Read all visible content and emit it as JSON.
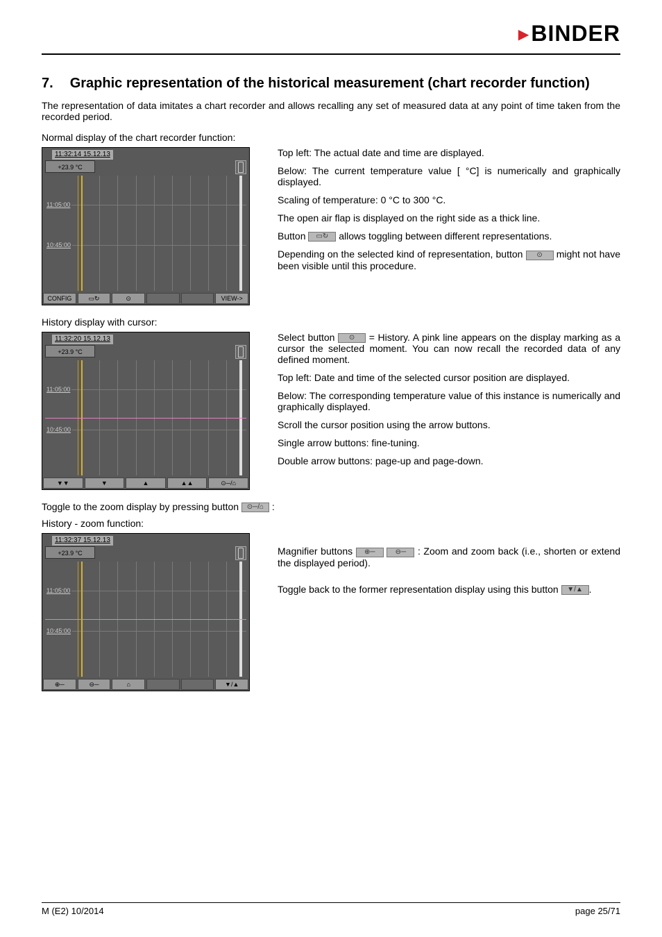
{
  "header": {
    "brand": "BINDER"
  },
  "section": {
    "number": "7.",
    "title": "Graphic representation of the historical measurement (chart recorder function)"
  },
  "intro": "The representation of data imitates a chart recorder and allows recalling any set of measured data at any point of time taken from the recorded period.",
  "caption1": "Normal display of the chart recorder function:",
  "caption2": "History display with cursor:",
  "toggle_caption": "Toggle to the zoom display by pressing button",
  "toggle_suffix": ":",
  "caption3": "History - zoom function:",
  "right1": {
    "p1": "Top left: The actual date and time are displayed.",
    "p2": "Below: The current temperature value [ °C] is numerically and graphically displayed.",
    "p3": "Scaling of temperature: 0 °C to 300 °C.",
    "p4": "The open air flap is displayed on the right side as a thick line.",
    "p5a": "Button",
    "p5b": "allows toggling between different representations.",
    "p6a": "Depending on the selected kind of representation, button",
    "p6b": "might not have been visible until this procedure."
  },
  "right2": {
    "p1a": "Select button",
    "p1b": "= History. A pink line appears on the display marking as a cursor the selected moment. You can now recall the recorded data of any defined moment.",
    "p2": "Top left: Date and time of the selected cursor position are displayed.",
    "p3": "Below: The corresponding temperature value of this instance is numerically and graphically displayed.",
    "p4": "Scroll the cursor position using the arrow buttons.",
    "p5": "Single arrow buttons: fine-tuning.",
    "p6": "Double arrow buttons: page-up and page-down."
  },
  "right3": {
    "p1a": "Magnifier buttons",
    "p1b": ": Zoom and zoom back (i.e., shorten or extend the displayed period).",
    "p2a": "Toggle back to the former representation display using this button",
    "p2b": "."
  },
  "screens": {
    "grid": {
      "vlines_pct": [
        18,
        27,
        36,
        45,
        54,
        63,
        72,
        81,
        90
      ],
      "hlines_pct": [
        25,
        60
      ],
      "time_labels": [
        {
          "top_pct": 22,
          "text": "11:05:00"
        },
        {
          "top_pct": 57,
          "text": "10:45:00"
        }
      ]
    },
    "s1": {
      "datetime": "11:32:14  15.12.13",
      "temp": "+23.9  °C",
      "buttons": [
        "CONFIG",
        "▭↻",
        "⊙",
        "",
        "",
        "VIEW->"
      ]
    },
    "s2": {
      "datetime": "11:32:20  15.12.13",
      "temp": "+23.9  °C",
      "buttons": [
        "▼▼",
        "▼",
        "▲",
        "▲▲",
        "⊙─/⌂"
      ]
    },
    "s3": {
      "datetime": "11:32:37  15.12.13",
      "temp": "+23.9  °C",
      "buttons": [
        "⊕─",
        "⊖─",
        "⌂",
        "",
        "",
        "▼/▲"
      ]
    }
  },
  "inline_icons": {
    "toggle_rep": "▭↻",
    "history": "⊙",
    "zoom_toggle": "⊙─/⌂",
    "zoom_in": "⊕─",
    "zoom_out": "⊖─",
    "arrows": "▼/▲"
  },
  "footer": {
    "left": "M (E2) 10/2014",
    "right": "page 25/71"
  }
}
